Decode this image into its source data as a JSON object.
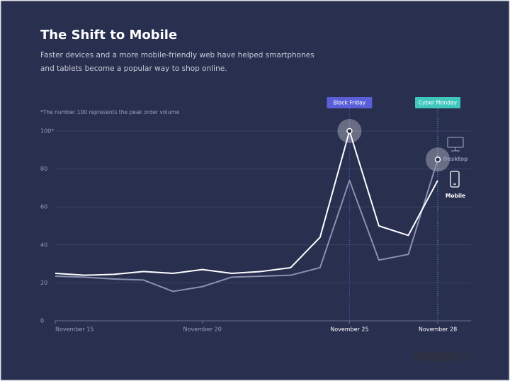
{
  "chart_data": {
    "type": "line",
    "title": "The Shift to Mobile",
    "subtitle": [
      "Faster devices and a more mobile-friendly web have helped smartphones",
      "and tablets become a popular way to shop online."
    ],
    "note": "*The number 100 represents the peak order volume",
    "categories": [
      "November 15",
      null,
      null,
      null,
      null,
      "November 20",
      null,
      null,
      null,
      null,
      "November 25",
      null,
      null,
      "November 28"
    ],
    "series": [
      {
        "name": "Desktop",
        "color": "#8a90b0",
        "values": [
          23.5,
          23,
          22,
          21.5,
          15.5,
          18,
          23,
          23.5,
          24,
          28,
          74,
          32,
          35,
          85
        ]
      },
      {
        "name": "Mobile",
        "color": "#ffffff",
        "values": [
          25,
          24,
          24.5,
          26,
          25,
          27,
          25,
          26,
          28,
          44,
          100,
          50,
          45,
          74
        ]
      }
    ],
    "annotations": [
      {
        "label": "Black Friday",
        "category": "November 25",
        "color": "#5a5ed8"
      },
      {
        "label": "Cyber Monday",
        "category": "November 28",
        "color": "#3fc6bd"
      }
    ],
    "ylim": [
      0,
      100
    ],
    "yticks": [
      0,
      20,
      40,
      60,
      80,
      {
        "value": 100,
        "label": "100*"
      }
    ],
    "grid": true,
    "watermark": "跨境微积分"
  }
}
